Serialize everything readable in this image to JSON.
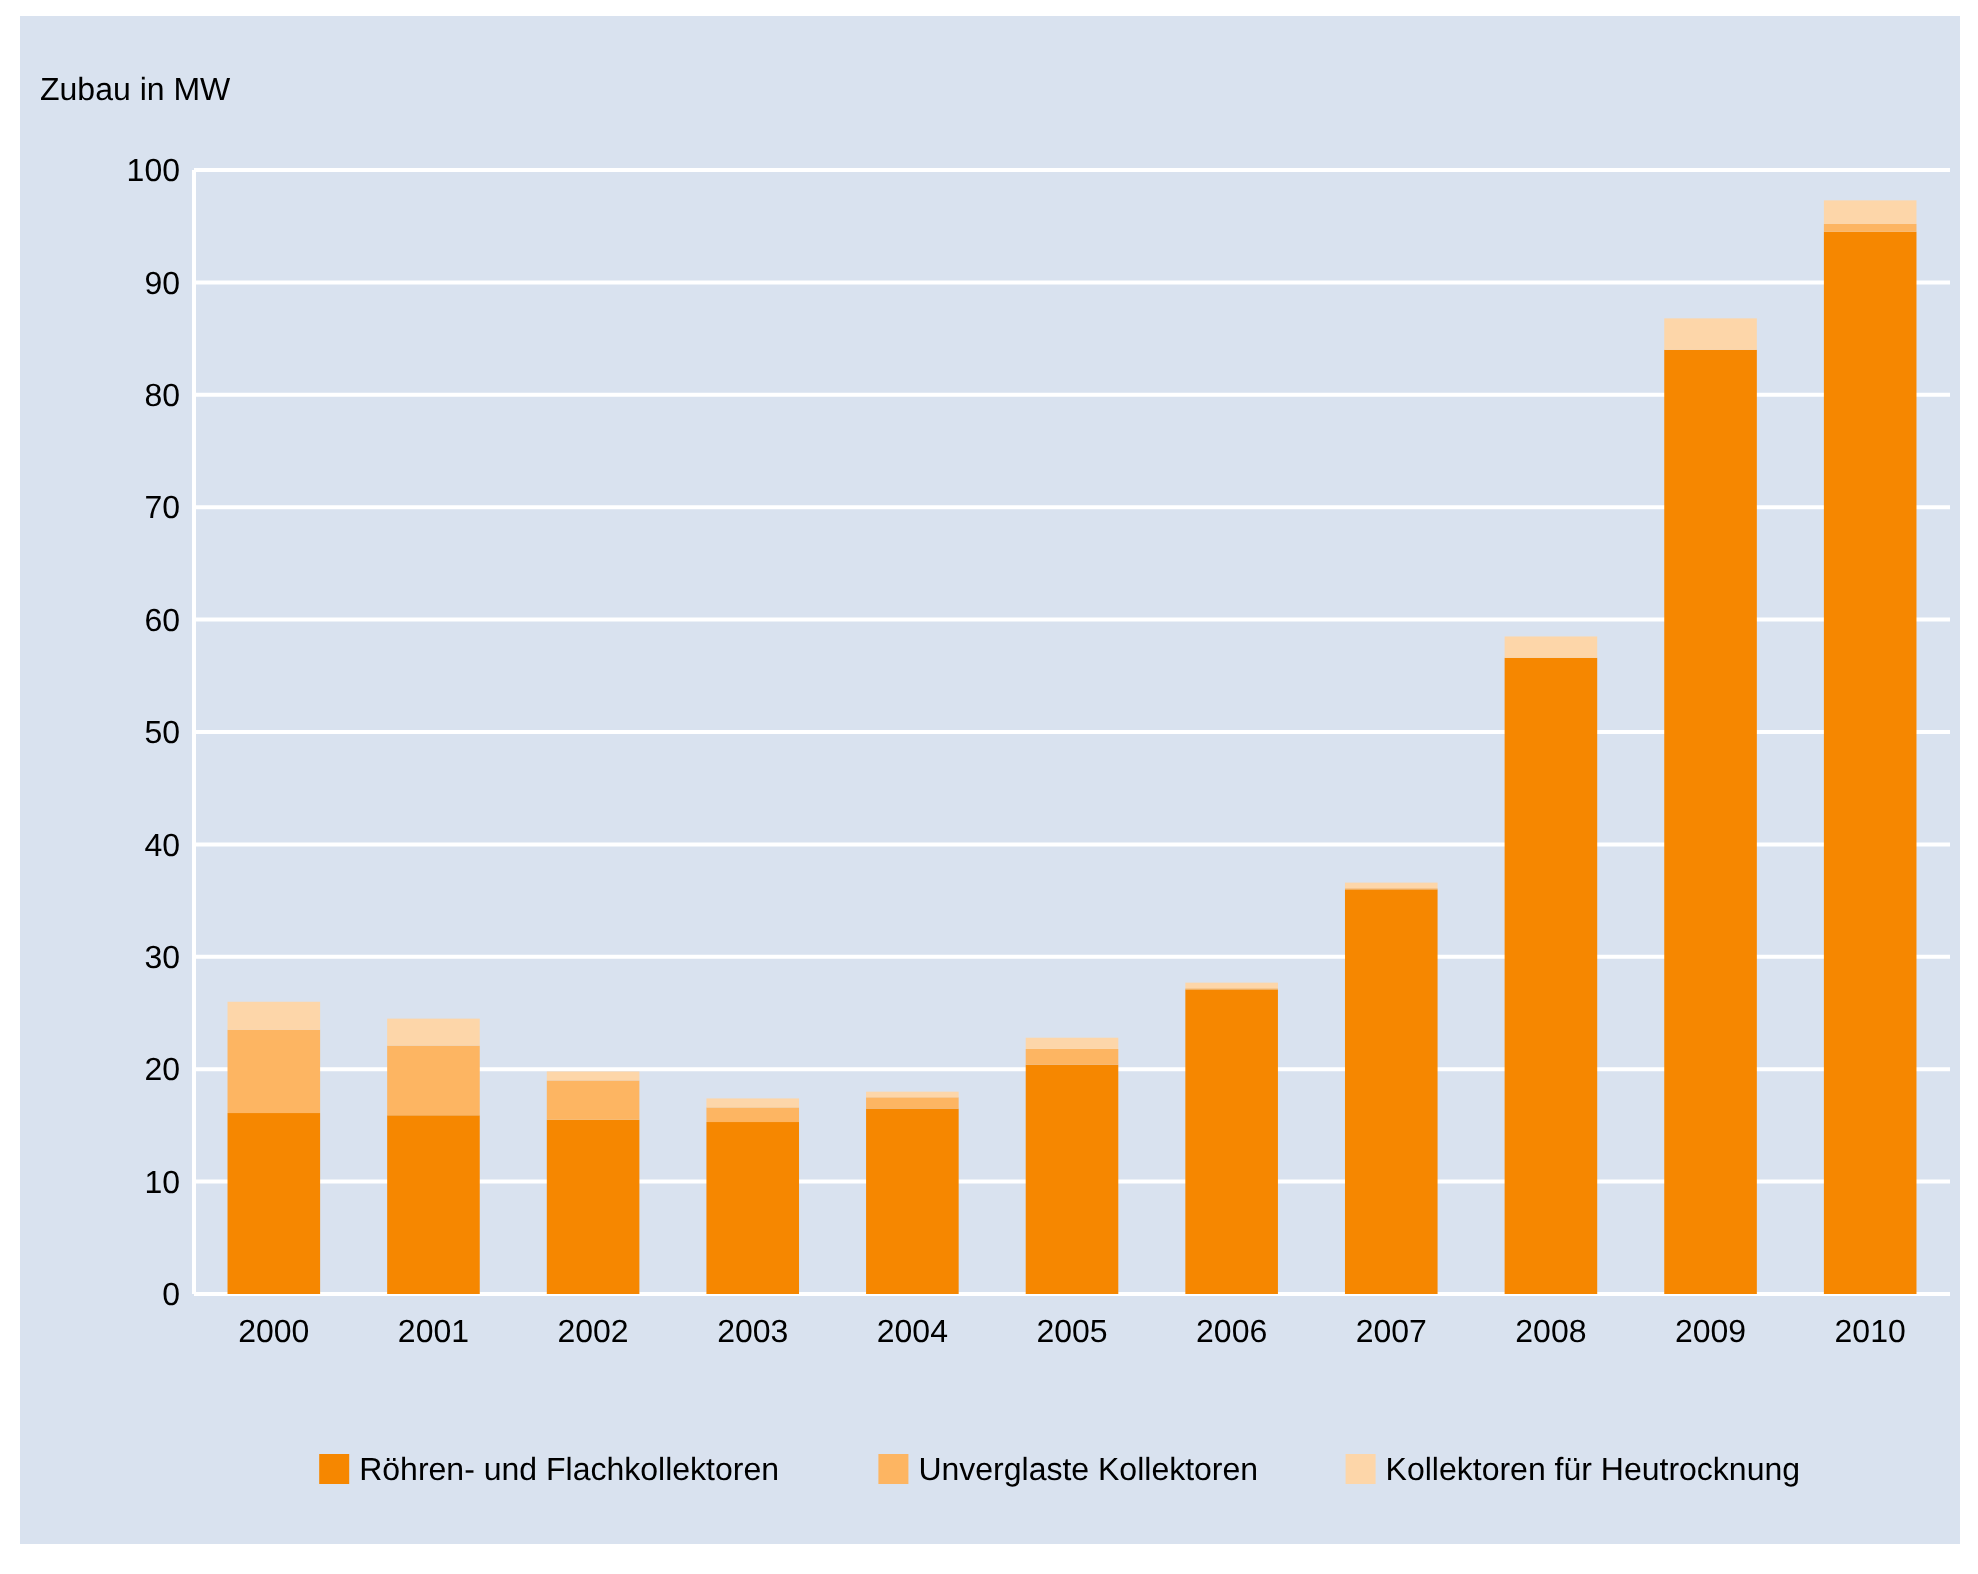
{
  "chart_data": {
    "type": "bar",
    "ylabel": "Zubau in MW",
    "categories": [
      "2000",
      "2001",
      "2002",
      "2003",
      "2004",
      "2005",
      "2006",
      "2007",
      "2008",
      "2009",
      "2010"
    ],
    "stacked": true,
    "series": [
      {
        "name": "Röhren- und Flachkollektoren",
        "color": "#f68700",
        "values": [
          16.1,
          15.9,
          15.5,
          15.3,
          16.5,
          20.4,
          27.1,
          36.0,
          56.6,
          84.0,
          94.5
        ]
      },
      {
        "name": "Unverglaste Kollektoren",
        "color": "#fdb562",
        "values": [
          7.4,
          6.2,
          3.5,
          1.3,
          1.0,
          1.4,
          0.1,
          0.1,
          0,
          0,
          0.7
        ]
      },
      {
        "name": "Kollektoren für Heutrocknung",
        "color": "#fdd6a9",
        "values": [
          2.5,
          2.4,
          0.8,
          0.8,
          0.5,
          1.0,
          0.5,
          0.5,
          1.9,
          2.8,
          2.1
        ]
      }
    ],
    "ylim": [
      0,
      100
    ],
    "yticks": [
      0,
      10,
      20,
      30,
      40,
      50,
      60,
      70,
      80,
      90,
      100
    ],
    "grid": "y",
    "legend": "bottom"
  }
}
